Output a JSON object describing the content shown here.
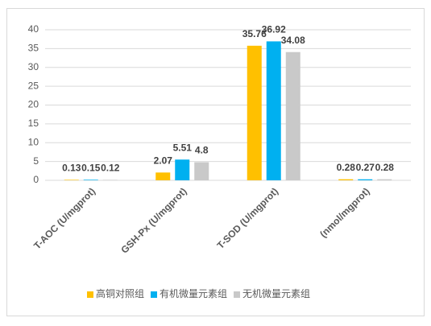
{
  "chart_data": {
    "type": "bar",
    "categories": [
      "T-AOC (U/mgprot)",
      "GSH-Px (U/mgprot)",
      "T-SOD (U/mgprot)",
      "(nmol/mgprot)"
    ],
    "series": [
      {
        "name": "高铜对照组",
        "color": "#ffc000",
        "values": [
          0.13,
          2.07,
          35.76,
          0.28
        ]
      },
      {
        "name": "有机微量元素组",
        "color": "#00b0f0",
        "values": [
          0.15,
          5.51,
          36.92,
          0.27
        ]
      },
      {
        "name": "无机微量元素组",
        "color": "#c9c9c9",
        "values": [
          0.12,
          4.8,
          34.08,
          0.28
        ]
      }
    ],
    "ylim": [
      0,
      40
    ],
    "yticks": [
      0,
      5,
      10,
      15,
      20,
      25,
      30,
      35,
      40
    ],
    "grid": true,
    "legend": "bottom"
  }
}
